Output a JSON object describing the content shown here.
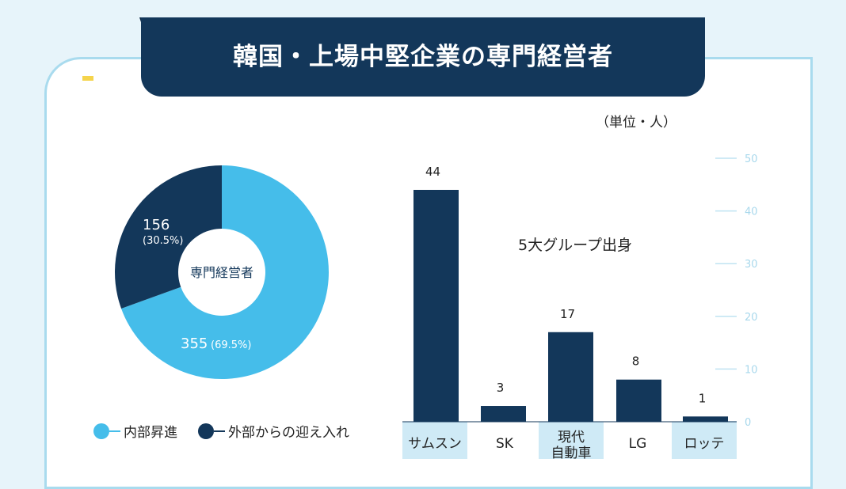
{
  "title": "韓国・上場中堅企業の専門経営者",
  "unit_label": "（単位・人）",
  "colors": {
    "light_blue": "#45bdea",
    "navy": "#13375a",
    "banner": "#13375a",
    "axis": "#bfe3f2"
  },
  "donut": {
    "center_label": "専門経営者",
    "slices": [
      {
        "name": "内部昇進",
        "value": 355,
        "label_value": "355",
        "label_pct": "(69.5%)",
        "color": "#45bdea"
      },
      {
        "name": "外部からの迎え入れ",
        "value": 156,
        "label_value": "156",
        "label_pct": "(30.5%)",
        "color": "#13375a"
      }
    ]
  },
  "legend": [
    {
      "label": "内部昇進",
      "color": "#45bdea"
    },
    {
      "label": "外部からの迎え入れ",
      "color": "#13375a"
    }
  ],
  "chart_data": [
    {
      "type": "pie",
      "center_label": "専門経営者",
      "categories": [
        "内部昇進",
        "外部からの迎え入れ"
      ],
      "values": [
        355,
        156
      ],
      "percent_labels": [
        "69.5%",
        "30.5%"
      ]
    },
    {
      "type": "bar",
      "title": "5大グループ出身",
      "categories": [
        "サムスン",
        "SK",
        "現代自動車",
        "LG",
        "ロッテ"
      ],
      "category_labels": [
        [
          "サムスン"
        ],
        [
          "SK"
        ],
        [
          "現代",
          "自動車"
        ],
        [
          "LG"
        ],
        [
          "ロッテ"
        ]
      ],
      "values": [
        44,
        3,
        17,
        8,
        1
      ],
      "value_labels": [
        "44",
        "3",
        "17",
        "8",
        "1"
      ],
      "ylim": [
        0,
        50
      ],
      "yticks": [
        0,
        10,
        20,
        30,
        40,
        50
      ],
      "ytick_labels": [
        "0",
        "10",
        "20",
        "30",
        "40",
        "50"
      ],
      "y_axis_side": "right",
      "bar_color": "#13375a"
    }
  ]
}
